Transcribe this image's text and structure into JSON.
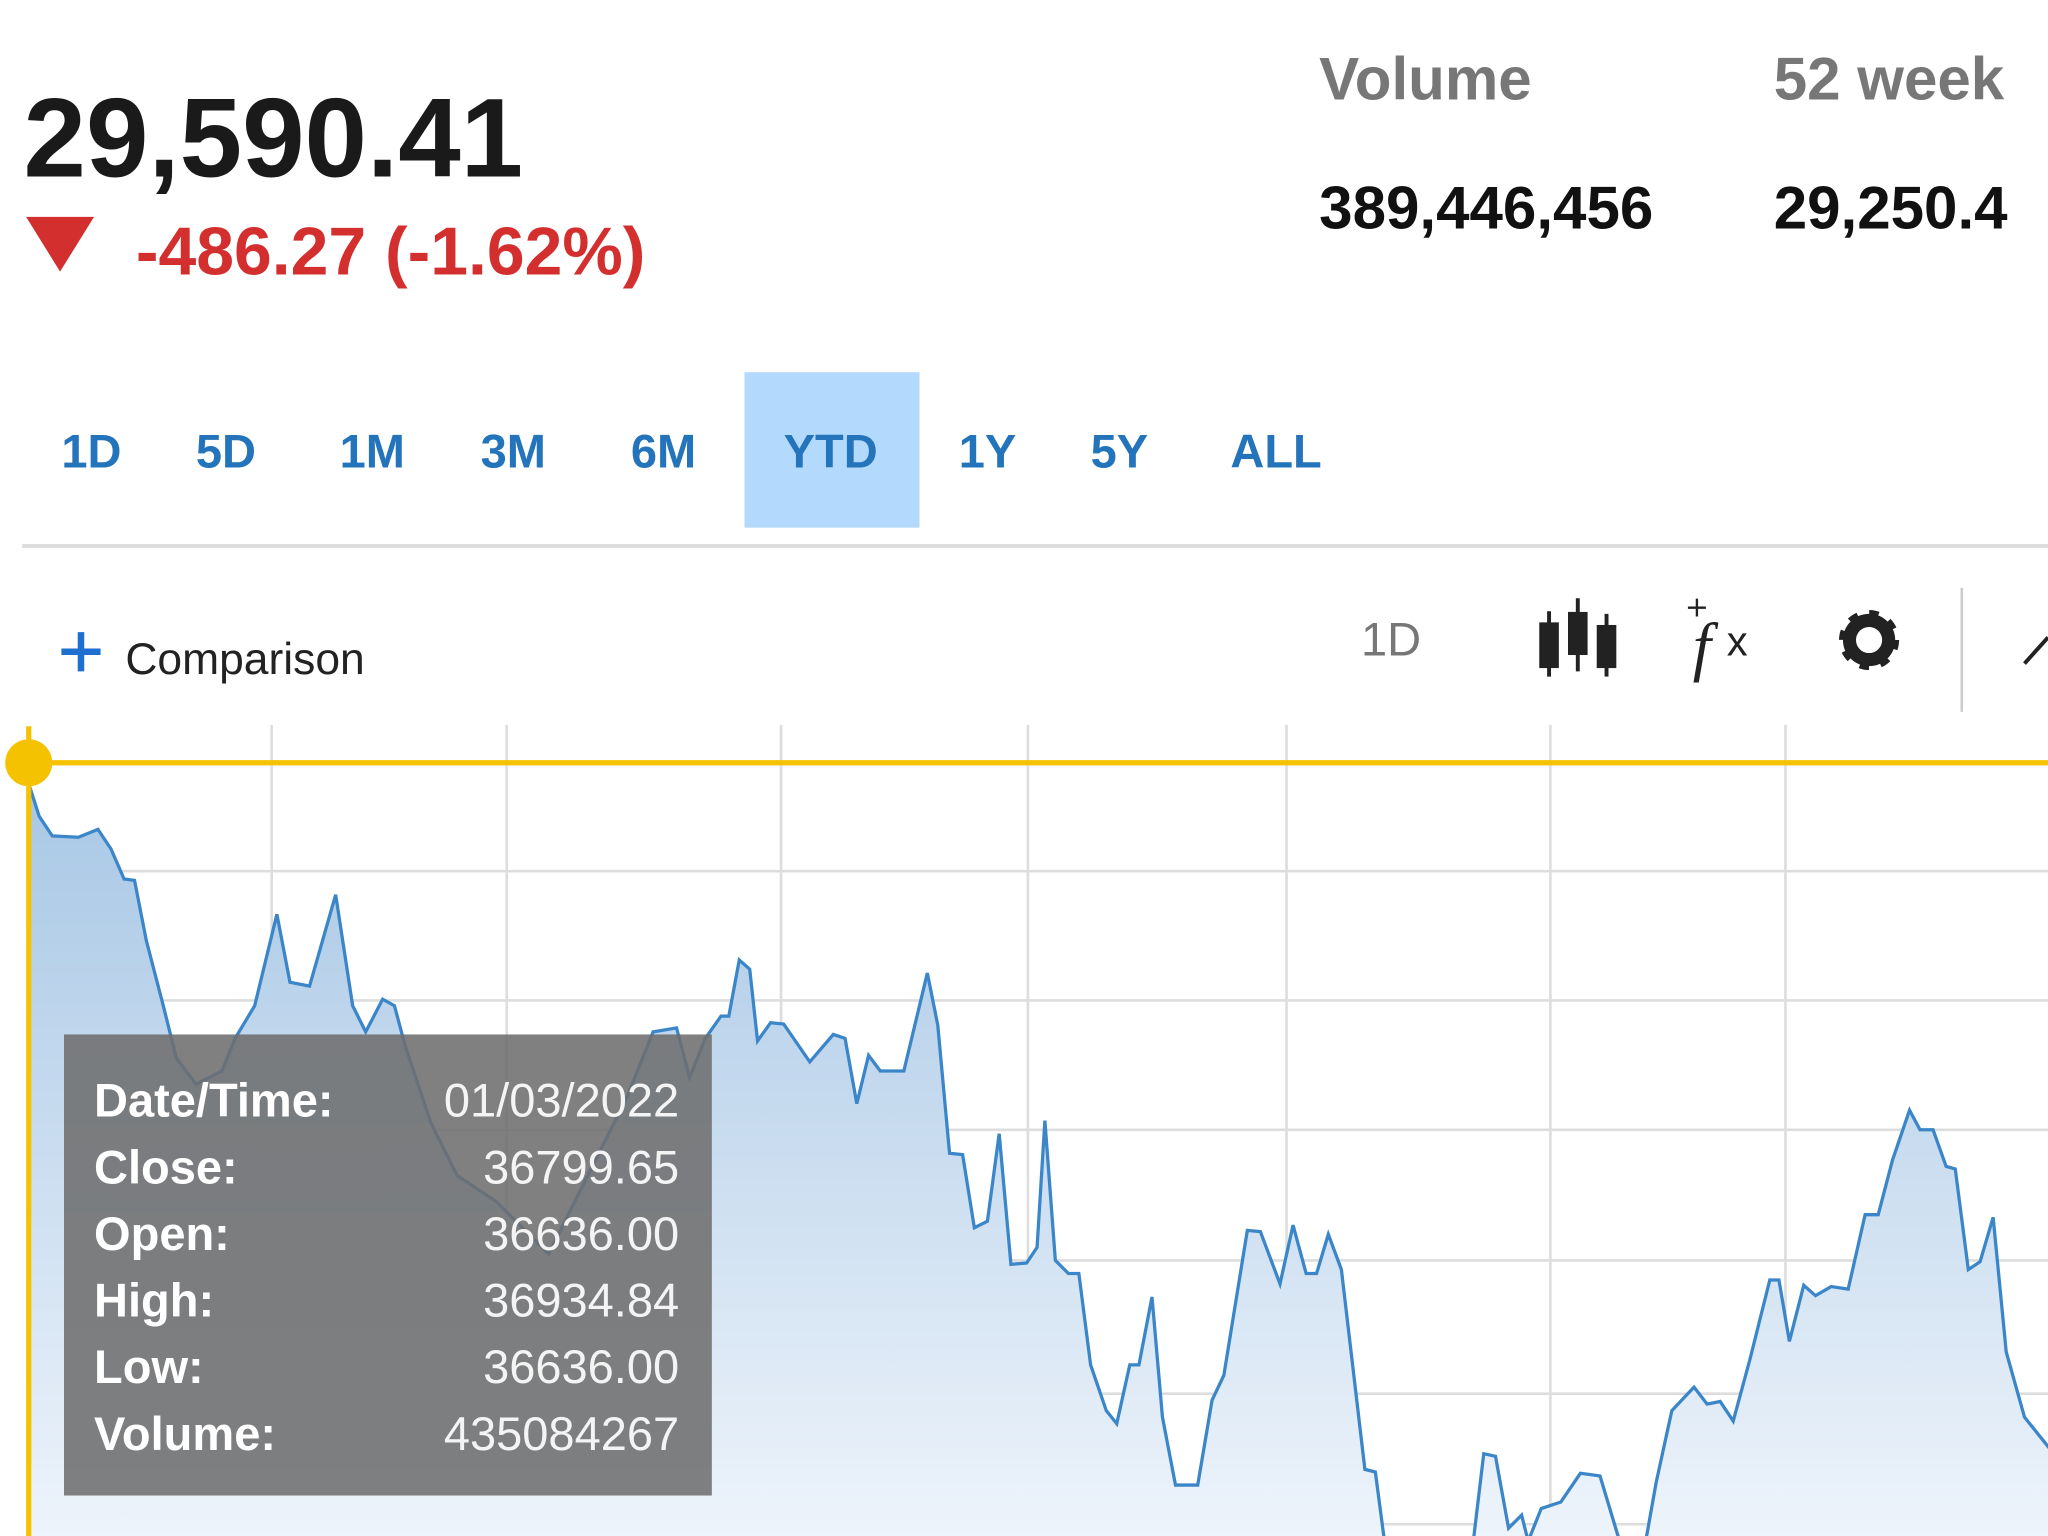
{
  "header": {
    "price": "29,590.41",
    "change": "-486.27 (-1.62%)",
    "stats": [
      {
        "label": "Volume",
        "value": "389,446,456"
      },
      {
        "label": "52 week",
        "value": "29,250.4"
      }
    ]
  },
  "ranges": {
    "buttons": [
      "1D",
      "5D",
      "1M",
      "3M",
      "6M",
      "YTD",
      "1Y",
      "5Y",
      "ALL"
    ],
    "selected": 5
  },
  "toolbar": {
    "comparison": "Comparison",
    "interval": "1D"
  },
  "tooltip": {
    "rows": [
      {
        "label": "Date/Time:",
        "value": "01/03/2022"
      },
      {
        "label": "Close:",
        "value": "36799.65"
      },
      {
        "label": "Open:",
        "value": "36636.00"
      },
      {
        "label": "High:",
        "value": "36934.84"
      },
      {
        "label": "Low:",
        "value": "36636.00"
      },
      {
        "label": "Volume:",
        "value": "435084267"
      }
    ]
  }
}
